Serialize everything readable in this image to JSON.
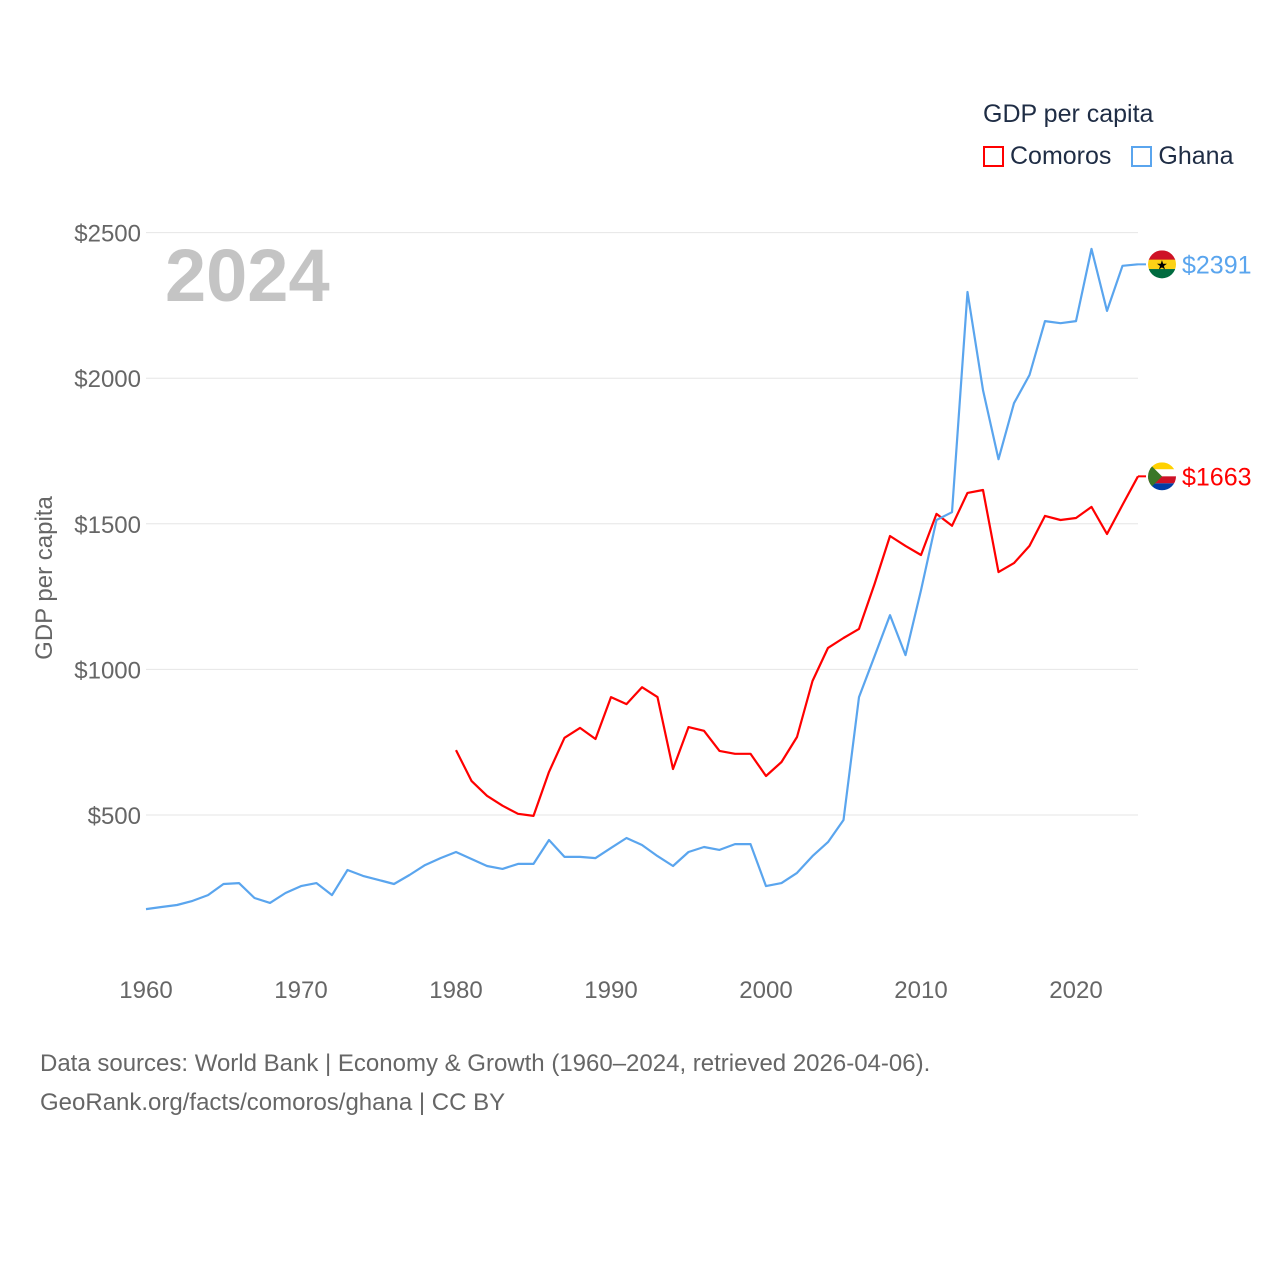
{
  "chart_data": {
    "type": "line",
    "title": "GDP per capita",
    "ylabel": "GDP per capita",
    "xlabel": "",
    "year_label": "2024",
    "xlim": [
      1960,
      2024
    ],
    "ylim": [
      0,
      2500
    ],
    "x_ticks": [
      1960,
      1970,
      1980,
      1990,
      2000,
      2010,
      2020
    ],
    "x_tick_labels": [
      "1960",
      "1970",
      "1980",
      "1990",
      "2000",
      "2010",
      "2020"
    ],
    "y_ticks": [
      500,
      1000,
      1500,
      2000,
      2500
    ],
    "y_tick_labels": [
      "$500",
      "$1000",
      "$1500",
      "$2000",
      "$2500"
    ],
    "grid": true,
    "legend_placement": "top-right",
    "series": [
      {
        "name": "Comoros",
        "color": "#ff0000",
        "start_year": 1980,
        "end_label": "$1663",
        "values": [
          723,
          617,
          566,
          532,
          504,
          497,
          648,
          765,
          799,
          761,
          905,
          881,
          939,
          905,
          658,
          802,
          789,
          720,
          710,
          710,
          634,
          682,
          768,
          960,
          1074,
          1108,
          1139,
          1293,
          1458,
          1424,
          1393,
          1534,
          1493,
          1606,
          1616,
          1334,
          1365,
          1424,
          1527,
          1513,
          1520,
          1558,
          1465,
          1565,
          1663
        ]
      },
      {
        "name": "Ghana",
        "color": "#5aa5ee",
        "start_year": 1960,
        "end_label": "$2391",
        "values": [
          177,
          184,
          191,
          205,
          225,
          263,
          266,
          215,
          198,
          232,
          256,
          266,
          225,
          311,
          291,
          277,
          263,
          294,
          328,
          352,
          373,
          349,
          325,
          315,
          332,
          332,
          414,
          356,
          356,
          352,
          387,
          421,
          397,
          359,
          325,
          373,
          390,
          380,
          400,
          400,
          256,
          266,
          301,
          359,
          407,
          483,
          905,
          1045,
          1186,
          1049,
          1272,
          1513,
          1540,
          2296,
          1959,
          1722,
          1914,
          2011,
          2196,
          2189,
          2196,
          2444,
          2231,
          2386,
          2391
        ]
      }
    ]
  },
  "footer": {
    "line1": "Data sources: World Bank | Economy & Growth (1960–2024, retrieved 2026-04-06).",
    "line2": "GeoRank.org/facts/comoros/ghana | CC BY"
  }
}
